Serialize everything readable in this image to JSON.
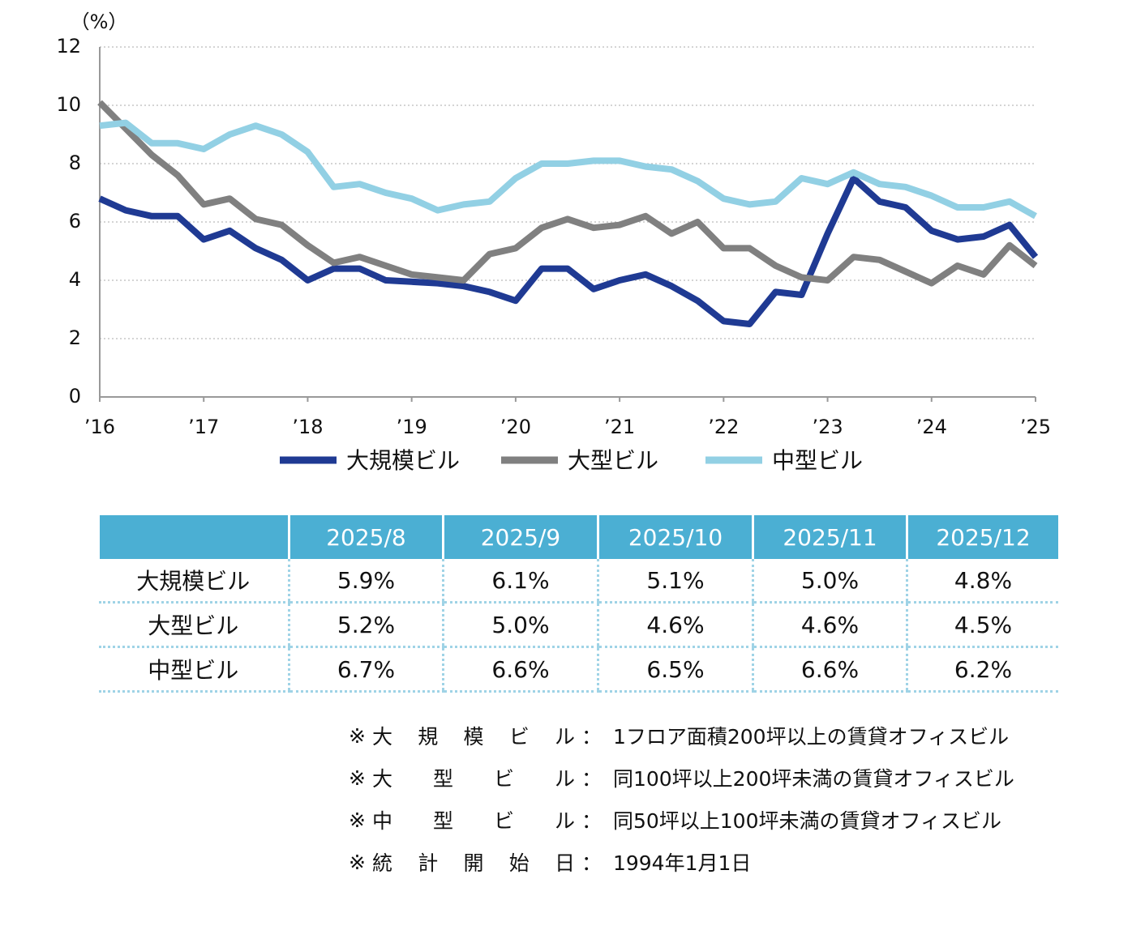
{
  "chart_data": {
    "type": "line",
    "y_label": "（%）",
    "x": [
      2016,
      2016.25,
      2016.5,
      2016.75,
      2017,
      2017.25,
      2017.5,
      2017.75,
      2018,
      2018.25,
      2018.5,
      2018.75,
      2019,
      2019.25,
      2019.5,
      2019.75,
      2020,
      2020.25,
      2020.5,
      2020.75,
      2021,
      2021.25,
      2021.5,
      2021.75,
      2022,
      2022.25,
      2022.5,
      2022.75,
      2023,
      2023.25,
      2023.5,
      2023.75,
      2024,
      2024.25,
      2024.5,
      2024.75,
      2025
    ],
    "xlim": [
      2016,
      2025
    ],
    "xticks": [
      {
        "value": 2016,
        "label": "’16"
      },
      {
        "value": 2017,
        "label": "’17"
      },
      {
        "value": 2018,
        "label": "’18"
      },
      {
        "value": 2019,
        "label": "’19"
      },
      {
        "value": 2020,
        "label": "’20"
      },
      {
        "value": 2021,
        "label": "’21"
      },
      {
        "value": 2022,
        "label": "’22"
      },
      {
        "value": 2023,
        "label": "’23"
      },
      {
        "value": 2024,
        "label": "’24"
      },
      {
        "value": 2025,
        "label": "’25"
      }
    ],
    "ylim": [
      0,
      12
    ],
    "yticks": [
      0,
      2,
      4,
      6,
      8,
      10,
      12
    ],
    "grid": true,
    "legend": "bottom",
    "series": [
      {
        "name": "大規模ビル",
        "color": "#1f3a93",
        "values": [
          6.8,
          6.4,
          6.2,
          6.2,
          5.4,
          5.7,
          5.1,
          4.7,
          4.0,
          4.4,
          4.4,
          4.0,
          3.95,
          3.9,
          3.8,
          3.6,
          3.3,
          4.4,
          4.4,
          3.7,
          4.0,
          4.2,
          3.8,
          3.3,
          2.6,
          2.5,
          3.6,
          3.5,
          5.6,
          7.5,
          6.7,
          6.5,
          5.7,
          5.4,
          5.5,
          5.9,
          4.8
        ]
      },
      {
        "name": "大型ビル",
        "color": "#808080",
        "values": [
          10.1,
          9.2,
          8.3,
          7.6,
          6.6,
          6.8,
          6.1,
          5.9,
          5.2,
          4.6,
          4.8,
          4.5,
          4.2,
          4.1,
          4.0,
          4.9,
          5.1,
          5.8,
          6.1,
          5.8,
          5.9,
          6.2,
          5.6,
          6.0,
          5.1,
          5.1,
          4.5,
          4.1,
          4.0,
          4.8,
          4.7,
          4.3,
          3.9,
          4.5,
          4.2,
          5.2,
          4.5
        ]
      },
      {
        "name": "中型ビル",
        "color": "#92d0e4",
        "values": [
          9.3,
          9.4,
          8.7,
          8.7,
          8.5,
          9.0,
          9.3,
          9.0,
          8.4,
          7.2,
          7.3,
          7.0,
          6.8,
          6.4,
          6.6,
          6.7,
          7.5,
          8.0,
          8.0,
          8.1,
          8.1,
          7.9,
          7.8,
          7.4,
          6.8,
          6.6,
          6.7,
          7.5,
          7.3,
          7.7,
          7.3,
          7.2,
          6.9,
          6.5,
          6.5,
          6.7,
          6.2
        ]
      }
    ]
  },
  "table": {
    "header": [
      "2025/8",
      "2025/9",
      "2025/10",
      "2025/11",
      "2025/12"
    ],
    "rows": [
      [
        "大規模ビル",
        "5.9%",
        "6.1%",
        "5.1%",
        "5.0%",
        "4.8%"
      ],
      [
        "大型ビル",
        "5.2%",
        "5.0%",
        "4.6%",
        "4.6%",
        "4.5%"
      ],
      [
        "中型ビル",
        "6.7%",
        "6.6%",
        "6.5%",
        "6.6%",
        "6.2%"
      ]
    ]
  },
  "notes": [
    {
      "mark": "※",
      "label": "大 規 模 ビ ル",
      "sep": "：",
      "text": "1フロア面積200坪以上の賃貸オフィスビル"
    },
    {
      "mark": "※",
      "label": "大 型 ビ ル",
      "sep": "：",
      "text": "同100坪以上200坪未満の賃貸オフィスビル"
    },
    {
      "mark": "※",
      "label": "中 型 ビ ル",
      "sep": "：",
      "text": "同50坪以上100坪未満の賃貸オフィスビル"
    },
    {
      "mark": "※",
      "label": "統 計 開 始 日",
      "sep": "：",
      "text": "1994年1月1日"
    }
  ]
}
